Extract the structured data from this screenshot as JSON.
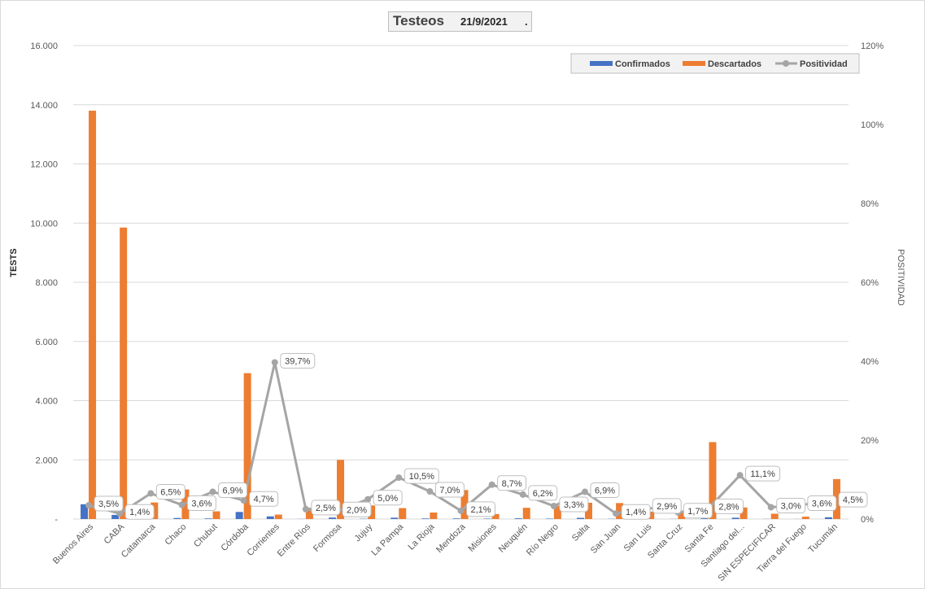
{
  "header": {
    "title": "Testeos",
    "date": "21/9/2021",
    "dot": "."
  },
  "colors": {
    "confirmados": "#4472c4",
    "descartados": "#ed7d31",
    "positividad": "#a5a5a5"
  },
  "chart_data": {
    "type": "bar",
    "title": "Testeos",
    "ylabel": "TESTS",
    "y2label": "POSITIVIDAD",
    "ylim": [
      0,
      16000
    ],
    "y2lim": [
      0,
      1.2
    ],
    "y_ticks": [
      "",
      "2.000",
      "4.000",
      "6.000",
      "8.000",
      "10.000",
      "12.000",
      "14.000",
      "16.000"
    ],
    "y2_ticks": [
      "0%",
      "20%",
      "40%",
      "60%",
      "80%",
      "100%",
      "120%"
    ],
    "grid": true,
    "legend_position": "top-right",
    "categories": [
      "Buenos Aires",
      "CABA",
      "Catamarca",
      "Chaco",
      "Chubut",
      "Córdoba",
      "Corrientes",
      "Entre Ríos",
      "Formosa",
      "Jujuy",
      "La Pampa",
      "La Rioja",
      "Mendoza",
      "Misiones",
      "Neuquén",
      "Río Negro",
      "Salta",
      "San Juan",
      "San Luis",
      "Santa Cruz",
      "Santa Fe",
      "Santiago del...",
      "SIN ESPECIFICAR",
      "Tierra del Fuego",
      "Tucumán"
    ],
    "series": [
      {
        "name": "Confirmados",
        "kind": "bar",
        "values": [
          500,
          140,
          40,
          35,
          20,
          240,
          90,
          5,
          50,
          10,
          45,
          20,
          20,
          15,
          25,
          15,
          40,
          8,
          8,
          5,
          75,
          45,
          5,
          3,
          60
        ]
      },
      {
        "name": "Descartados",
        "kind": "bar",
        "values": [
          13800,
          9850,
          560,
          1000,
          260,
          4930,
          150,
          380,
          2000,
          460,
          370,
          220,
          980,
          170,
          380,
          450,
          550,
          540,
          250,
          280,
          2600,
          390,
          180,
          80,
          1350
        ]
      },
      {
        "name": "Positividad",
        "kind": "line",
        "axis": "secondary",
        "values": [
          0.035,
          0.014,
          0.065,
          0.036,
          0.069,
          0.047,
          0.397,
          0.025,
          0.02,
          0.05,
          0.105,
          0.07,
          0.021,
          0.087,
          0.062,
          0.033,
          0.069,
          0.014,
          0.029,
          0.017,
          0.028,
          0.111,
          0.03,
          0.036,
          0.045
        ],
        "labels": [
          "3,5%",
          "1,4%",
          "6,5%",
          "3,6%",
          "6,9%",
          "4,7%",
          "39,7%",
          "2,5%",
          "2,0%",
          "5,0%",
          "10,5%",
          "7,0%",
          "2,1%",
          "8,7%",
          "6,2%",
          "3,3%",
          "6,9%",
          "1,4%",
          "2,9%",
          "1,7%",
          "2,8%",
          "11,1%",
          "3,0%",
          "3,6%",
          "4,5%"
        ]
      }
    ]
  }
}
